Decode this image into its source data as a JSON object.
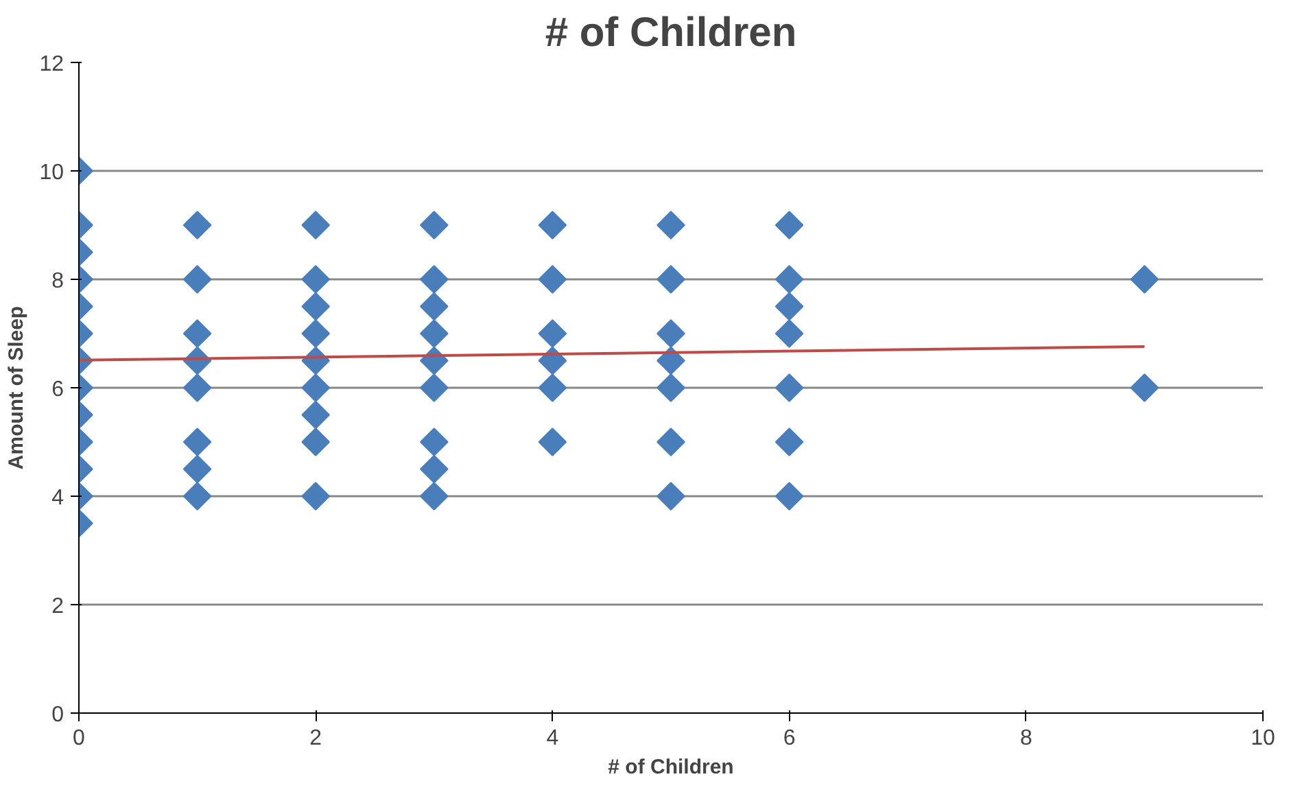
{
  "chart_data": {
    "type": "scatter",
    "title": "# of Children",
    "xlabel": "# of Children",
    "ylabel": "Amount of Sleep",
    "xlim": [
      0,
      10
    ],
    "xticks": [
      0,
      2,
      4,
      6,
      8,
      10
    ],
    "ylim": [
      0,
      12
    ],
    "yticks": [
      0,
      2,
      4,
      6,
      8,
      10,
      12
    ],
    "grid": "y",
    "series": [
      {
        "marker": "diamond",
        "color": "#4a7ebb",
        "x": [
          0,
          0,
          0,
          0,
          0,
          0,
          0,
          0,
          0,
          0,
          0,
          0,
          0,
          1,
          1,
          1,
          1,
          1,
          1,
          1,
          1,
          2,
          2,
          2,
          2,
          2,
          2,
          2,
          2,
          2,
          3,
          3,
          3,
          3,
          3,
          3,
          3,
          3,
          3,
          4,
          4,
          4,
          4,
          4,
          4,
          5,
          5,
          5,
          5,
          5,
          5,
          5,
          6,
          6,
          6,
          6,
          6,
          6,
          6,
          9,
          9
        ],
        "values": [
          10,
          9,
          8.5,
          8,
          7.5,
          7,
          6.5,
          6,
          5.5,
          5,
          4.5,
          4,
          3.5,
          9,
          8,
          7,
          6.5,
          6,
          5,
          4.5,
          4,
          9,
          8,
          7.5,
          7,
          6.5,
          6,
          5.5,
          5,
          4,
          9,
          8,
          7.5,
          7,
          6.5,
          6,
          5,
          4.5,
          4,
          9,
          8,
          7,
          6.5,
          6,
          5,
          9,
          8,
          7,
          6.5,
          6,
          5,
          4,
          9,
          8,
          7.5,
          7,
          6,
          5,
          4,
          8,
          6
        ]
      },
      {
        "type": "line",
        "marker": "none",
        "color": "#be4b48",
        "x": [
          0,
          9
        ],
        "values": [
          6.51,
          6.76
        ]
      }
    ]
  }
}
